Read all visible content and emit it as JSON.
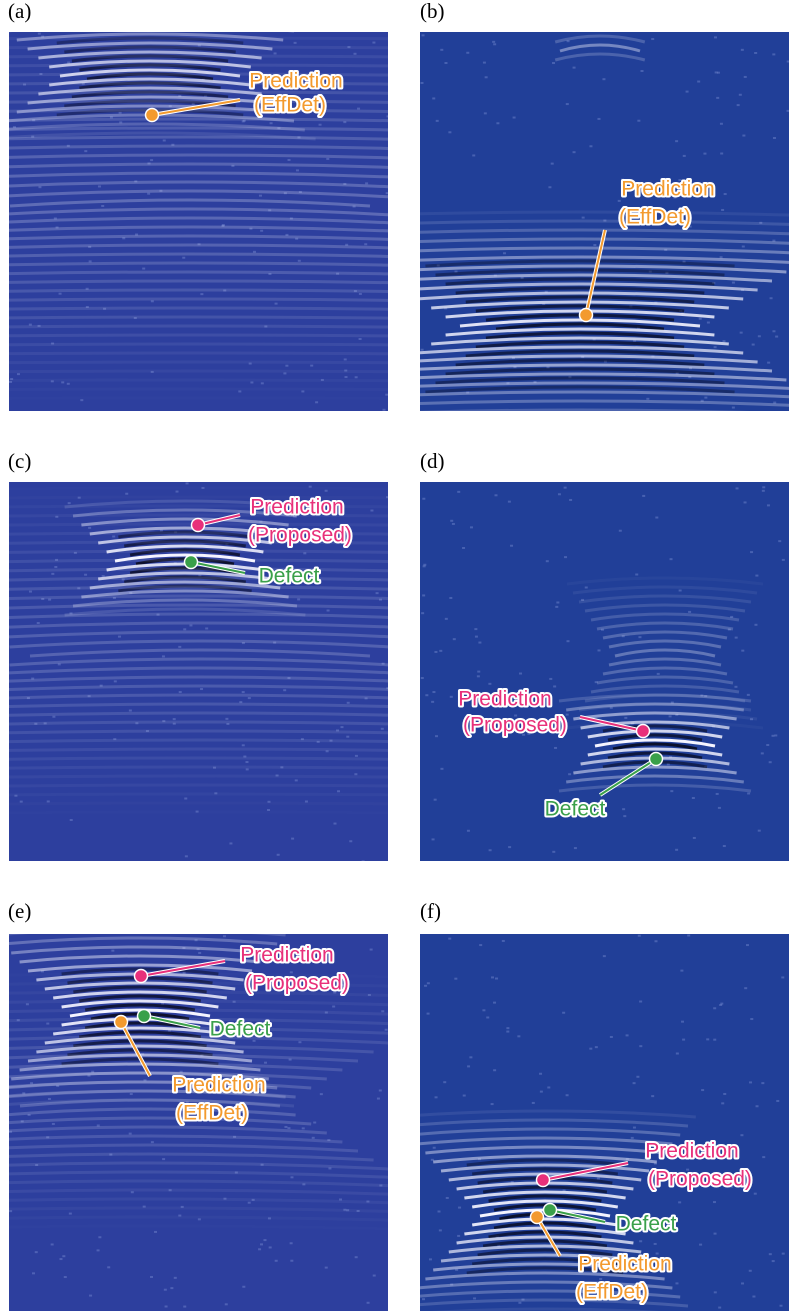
{
  "panels": [
    {
      "label": "(a)",
      "annotations": [
        {
          "lines": [
            "Prediction",
            "(EffDet)"
          ]
        }
      ]
    },
    {
      "label": "(b)",
      "annotations": [
        {
          "lines": [
            "Prediction",
            "(EffDet)"
          ]
        }
      ]
    },
    {
      "label": "(c)",
      "annotations": [
        {
          "lines": [
            "Prediction",
            "(Proposed)"
          ]
        },
        {
          "lines": [
            "Defect"
          ]
        }
      ]
    },
    {
      "label": "(d)",
      "annotations": [
        {
          "lines": [
            "Prediction",
            "(Proposed)"
          ]
        },
        {
          "lines": [
            "Defect"
          ]
        }
      ]
    },
    {
      "label": "(e)",
      "annotations": [
        {
          "lines": [
            "Prediction",
            "(Proposed)"
          ]
        },
        {
          "lines": [
            "Defect"
          ]
        },
        {
          "lines": [
            "Prediction",
            "(EffDet)"
          ]
        }
      ]
    },
    {
      "label": "(f)",
      "annotations": [
        {
          "lines": [
            "Prediction",
            "(Proposed)"
          ]
        },
        {
          "lines": [
            "Defect"
          ]
        },
        {
          "lines": [
            "Prediction",
            "(EffDet)"
          ]
        }
      ]
    }
  ]
}
